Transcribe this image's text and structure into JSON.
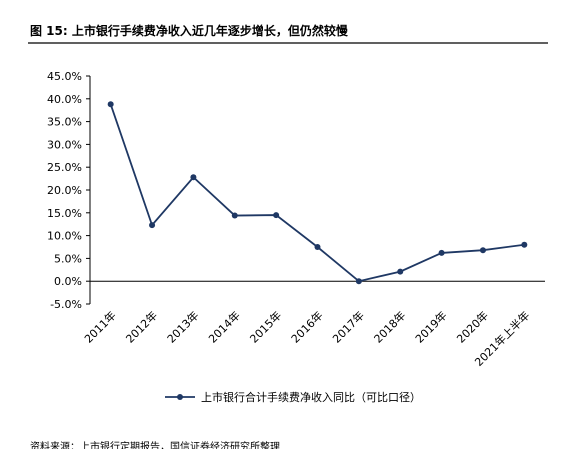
{
  "chart_data": {
    "type": "line",
    "title": "图 15: 上市银行手续费净收入近几年逐步增长，但仍然较慢",
    "source": "资料来源：上市银行定期报告，国信证券经济研究所整理",
    "categories": [
      "2011年",
      "2012年",
      "2013年",
      "2014年",
      "2015年",
      "2016年",
      "2017年",
      "2018年",
      "2019年",
      "2020年",
      "2021年上半年"
    ],
    "series": [
      {
        "name": "上市银行合计手续费净收入同比（可比口径）",
        "color": "#1f3864",
        "values": [
          38.8,
          12.3,
          22.8,
          14.4,
          14.5,
          7.5,
          0.0,
          2.1,
          6.2,
          6.8,
          8.0
        ]
      }
    ],
    "ylim": [
      -5,
      45
    ],
    "yticks": [
      {
        "value": -5,
        "label": "-5.0%"
      },
      {
        "value": 0,
        "label": "0.0%"
      },
      {
        "value": 5,
        "label": "5.0%"
      },
      {
        "value": 10,
        "label": "10.0%"
      },
      {
        "value": 15,
        "label": "15.0%"
      },
      {
        "value": 20,
        "label": "20.0%"
      },
      {
        "value": 25,
        "label": "25.0%"
      },
      {
        "value": 30,
        "label": "30.0%"
      },
      {
        "value": 35,
        "label": "35.0%"
      },
      {
        "value": 40,
        "label": "40.0%"
      },
      {
        "value": 45,
        "label": "45.0%"
      }
    ],
    "legend": "bottom"
  }
}
